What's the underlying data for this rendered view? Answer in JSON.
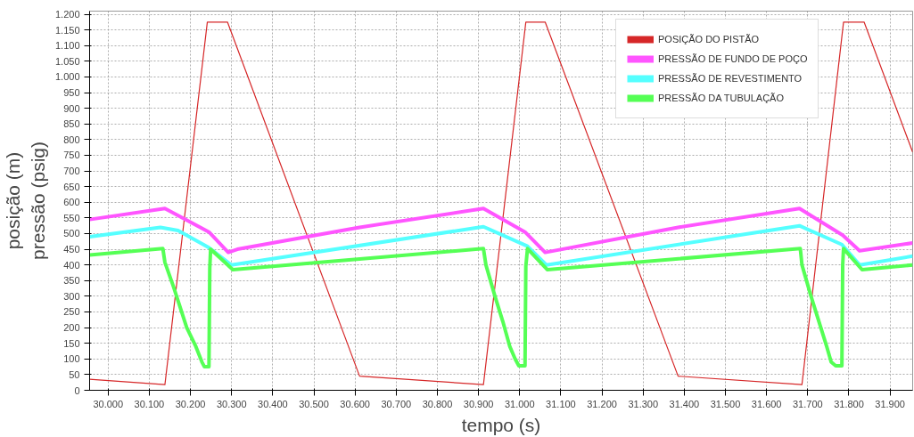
{
  "chart_data": {
    "type": "line",
    "xlabel": "tempo (s)",
    "ylabel": "posição (m)\npressão (psig)",
    "xlim": [
      29955,
      31955
    ],
    "ylim": [
      0,
      1210
    ],
    "xticks": [
      {
        "value": 30000,
        "label": "30.000"
      },
      {
        "value": 30100,
        "label": "30.100"
      },
      {
        "value": 30200,
        "label": "30.200"
      },
      {
        "value": 30300,
        "label": "30.300"
      },
      {
        "value": 30400,
        "label": "30.400"
      },
      {
        "value": 30500,
        "label": "30.500"
      },
      {
        "value": 30600,
        "label": "30.600"
      },
      {
        "value": 30700,
        "label": "30.700"
      },
      {
        "value": 30800,
        "label": "30.800"
      },
      {
        "value": 30900,
        "label": "30.900"
      },
      {
        "value": 31000,
        "label": "31.000"
      },
      {
        "value": 31100,
        "label": "31.100"
      },
      {
        "value": 31200,
        "label": "31.200"
      },
      {
        "value": 31300,
        "label": "31.300"
      },
      {
        "value": 31400,
        "label": "31.400"
      },
      {
        "value": 31500,
        "label": "31.500"
      },
      {
        "value": 31600,
        "label": "31.600"
      },
      {
        "value": 31700,
        "label": "31.700"
      },
      {
        "value": 31800,
        "label": "31.800"
      },
      {
        "value": 31900,
        "label": "31.900"
      }
    ],
    "yticks": [
      0,
      50,
      100,
      150,
      200,
      250,
      300,
      350,
      400,
      450,
      500,
      550,
      600,
      650,
      700,
      750,
      800,
      850,
      900,
      950,
      {
        "value": 1000,
        "label": "1.000"
      },
      {
        "value": 1050,
        "label": "1.050"
      },
      {
        "value": 1100,
        "label": "1.100"
      },
      {
        "value": 1150,
        "label": "1.150"
      },
      {
        "value": 1200,
        "label": "1.200"
      }
    ],
    "grid": true,
    "legend": "top right",
    "marker": "none",
    "line_style": "solid",
    "series": [
      {
        "name": "POSIÇÃO DO PISTÃO",
        "color": "#d62728",
        "x": [
          29955,
          30138,
          30241,
          30290,
          30611,
          30912,
          31015,
          31062,
          31385,
          31686,
          31787,
          31837,
          31955
        ],
        "values": [
          35,
          18,
          1175,
          1175,
          45,
          18,
          1175,
          1175,
          45,
          18,
          1175,
          1175,
          760
        ]
      },
      {
        "name": "PRESSÃO DE FUNDO DE POÇO",
        "color": "#ff55ff",
        "x": [
          29955,
          30138,
          30245,
          30292,
          30314,
          30611,
          30912,
          31013,
          31062,
          31385,
          31680,
          31785,
          31826,
          31955
        ],
        "values": [
          545,
          580,
          505,
          440,
          450,
          520,
          580,
          505,
          440,
          520,
          580,
          495,
          445,
          470
        ]
      },
      {
        "name": "PRESSÃO DE REVESTIMENTO",
        "color": "#55ffff",
        "x": [
          29955,
          30127,
          30170,
          30245,
          30299,
          30912,
          31019,
          31065,
          31680,
          31783,
          31826,
          31955
        ],
        "values": [
          490,
          520,
          510,
          455,
          400,
          522,
          460,
          400,
          525,
          465,
          400,
          428
        ]
      },
      {
        "name": "PRESSÃO DA TUBULAÇÃO",
        "color": "#55ff55",
        "x": [
          29955,
          30133,
          30138,
          30159,
          30191,
          30213,
          30228,
          30234,
          30245,
          30247,
          30249,
          30303,
          30912,
          30918,
          30940,
          30959,
          30976,
          30989,
          30998,
          31013,
          31015,
          31019,
          31067,
          31682,
          31686,
          31708,
          31746,
          31757,
          31768,
          31783,
          31785,
          31787,
          31832,
          31955
        ],
        "values": [
          432,
          452,
          408,
          330,
          200,
          140,
          90,
          75,
          75,
          390,
          450,
          385,
          452,
          400,
          300,
          220,
          140,
          100,
          78,
          78,
          395,
          452,
          385,
          452,
          400,
          300,
          140,
          90,
          78,
          78,
          400,
          452,
          385,
          400
        ]
      }
    ]
  }
}
